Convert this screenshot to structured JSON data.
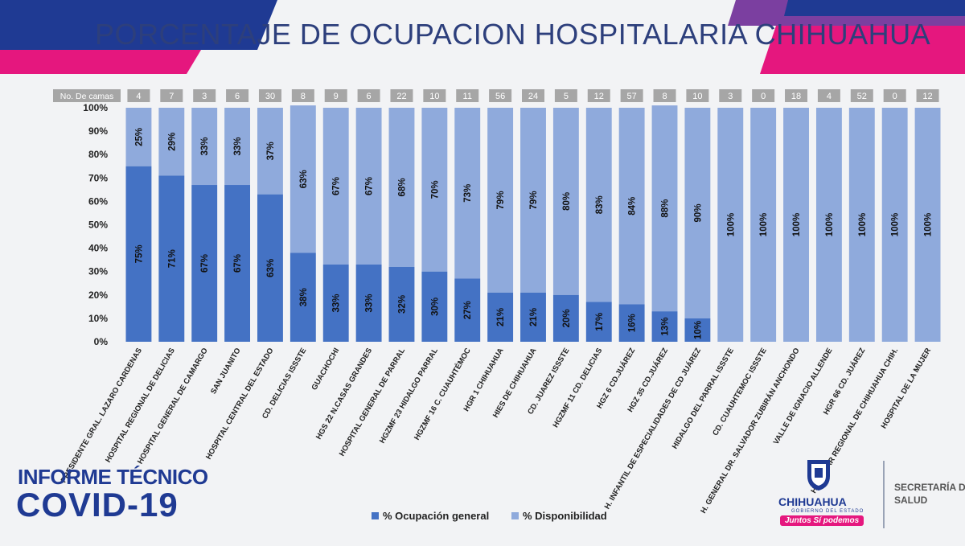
{
  "title": "PORCENTAJE DE OCUPACION HOSPITALARIA CHIHUAHUA",
  "branding": {
    "line1": "INFORME TÉCNICO",
    "line2": "COVID-19"
  },
  "logo": {
    "name": "CHIHUAHUA",
    "subtitle": "GOBIERNO DEL ESTADO",
    "slogan": "Juntos Sí podemos"
  },
  "agency": {
    "line1": "SECRETARÍA DE",
    "line2": "SALUD"
  },
  "colors": {
    "occupancy": "#4472c4",
    "availability": "#8faadc",
    "accent_blue": "#1f3a93",
    "accent_pink": "#e5177e"
  },
  "chart_data": {
    "type": "bar",
    "stacked": true,
    "percent_scale": true,
    "title": "PORCENTAJE DE OCUPACION HOSPITALARIA CHIHUAHUA",
    "beds_label": "No. De camas",
    "categories": [
      "PRESIDENTE GRAL. LAZARO CARDENAS",
      "HOSPITAL REGIONAL DE DELICIAS",
      "HOSPITAL GENERAL DE CAMARGO",
      "SAN JUANITO",
      "HOSPITAL CENTRAL DEL ESTADO",
      "CD. DELICIAS ISSSTE",
      "GUACHOCHI",
      "HGS 22 N.CASAS GRANDES",
      "HOSPITAL GENERAL DE PARRAL",
      "HGZMF 23 HIDALGO PARRAL",
      "HGZMF 16 C. CUAUHTÉMOC",
      "HGR 1 CHIHUAHUA",
      "HIES DE CHIHUAHUA",
      "CD. JUAREZ ISSSTE",
      "HGZMF 11 CD. DELICIAS",
      "HGZ 6 CD.JUÁREZ",
      "HGZ 35 CD.JUÁREZ",
      "H. INFANTIL DE ESPECIALIDADES DE CD JUÁREZ",
      "HIDALGO DEL PARRAL ISSSTE",
      "CD. CUAUHTEMOC ISSSTE",
      "H. GENERAL DR. SALVADOR ZUBIRÁN ANCHONDO",
      "VALLE DE IGNACIO ALLENDE",
      "HGR 66 CD. JUÁREZ",
      "H. MILITAR REGIONAL DE CHIHUAHUA CHIH.",
      "HOSPITAL DE LA MUJER"
    ],
    "beds": [
      4,
      7,
      3,
      6,
      30,
      8,
      9,
      6,
      22,
      10,
      11,
      56,
      24,
      5,
      12,
      57,
      8,
      10,
      3,
      0,
      18,
      4,
      52,
      0,
      12
    ],
    "series": [
      {
        "name": "% Ocupación general",
        "values": [
          75,
          71,
          67,
          67,
          63,
          38,
          33,
          33,
          32,
          30,
          27,
          21,
          21,
          20,
          17,
          16,
          13,
          10,
          0,
          0,
          0,
          0,
          0,
          0,
          0
        ]
      },
      {
        "name": "% Disponibilidad",
        "values": [
          25,
          29,
          33,
          33,
          37,
          63,
          67,
          67,
          68,
          70,
          73,
          79,
          79,
          80,
          83,
          84,
          88,
          90,
          100,
          100,
          100,
          100,
          100,
          100,
          100
        ]
      }
    ],
    "yticks": [
      "0%",
      "10%",
      "20%",
      "30%",
      "40%",
      "50%",
      "60%",
      "70%",
      "80%",
      "90%",
      "100%"
    ],
    "ylim": [
      0,
      100
    ],
    "legend_position": "bottom"
  }
}
